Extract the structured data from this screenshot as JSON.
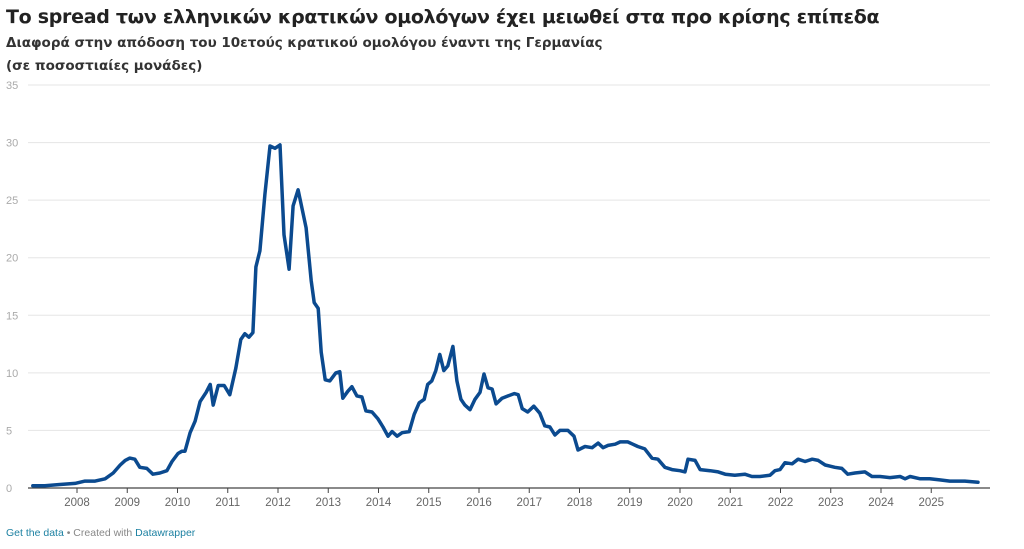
{
  "chart_data": {
    "type": "line",
    "title": "Το spread των ελληνικών κρατικών ομολόγων έχει μειωθεί στα προ κρίσης επίπεδα",
    "subtitle": "Διαφορά στην απόδοση του 10ετούς κρατικού ομολόγου έναντι της Γερμανίας",
    "subtitle2": "(σε ποσοστιαίες μονάδες)",
    "ylim": [
      0,
      35
    ],
    "yticks": [
      "0",
      "5",
      "10",
      "15",
      "20",
      "25",
      "30",
      "35"
    ],
    "xticks": [
      "2008",
      "2009",
      "2010",
      "2011",
      "2012",
      "2013",
      "2014",
      "2015",
      "2016",
      "2017",
      "2018",
      "2019",
      "2020",
      "2021",
      "2022",
      "2023",
      "2024",
      "2025"
    ],
    "grid": true,
    "line_color": "#0b4a8f",
    "x": [
      2007.12,
      2007.36,
      2007.66,
      2007.96,
      2008.16,
      2008.36,
      2008.56,
      2008.72,
      2008.86,
      2008.96,
      2009.05,
      2009.15,
      2009.25,
      2009.39,
      2009.51,
      2009.65,
      2009.79,
      2009.89,
      2010.01,
      2010.09,
      2010.15,
      2010.25,
      2010.35,
      2010.45,
      2010.57,
      2010.65,
      2010.71,
      2010.81,
      2010.93,
      2011.04,
      2011.16,
      2011.26,
      2011.34,
      2011.42,
      2011.5,
      2011.56,
      2011.64,
      2011.74,
      2011.84,
      2011.94,
      2012.04,
      2012.12,
      2012.22,
      2012.3,
      2012.4,
      2012.56,
      2012.66,
      2012.72,
      2012.8,
      2012.86,
      2012.94,
      2013.03,
      2013.15,
      2013.23,
      2013.29,
      2013.39,
      2013.47,
      2013.57,
      2013.67,
      2013.75,
      2013.87,
      2013.99,
      2014.09,
      2014.19,
      2014.27,
      2014.37,
      2014.47,
      2014.61,
      2014.71,
      2014.81,
      2014.91,
      2014.98,
      2015.06,
      2015.14,
      2015.22,
      2015.3,
      2015.38,
      2015.48,
      2015.56,
      2015.64,
      2015.72,
      2015.82,
      2015.92,
      2016.02,
      2016.1,
      2016.18,
      2016.26,
      2016.34,
      2016.46,
      2016.58,
      2016.7,
      2016.78,
      2016.86,
      2016.97,
      2017.09,
      2017.21,
      2017.31,
      2017.41,
      2017.51,
      2017.61,
      2017.77,
      2017.89,
      2017.97,
      2018.11,
      2018.25,
      2018.37,
      2018.47,
      2018.57,
      2018.71,
      2018.81,
      2018.96,
      2019.06,
      2019.16,
      2019.3,
      2019.44,
      2019.56,
      2019.7,
      2019.84,
      2020.0,
      2020.1,
      2020.16,
      2020.3,
      2020.4,
      2020.6,
      2020.76,
      2020.9,
      2021.09,
      2021.29,
      2021.43,
      2021.59,
      2021.79,
      2021.89,
      2021.99,
      2022.09,
      2022.23,
      2022.35,
      2022.49,
      2022.63,
      2022.75,
      2022.89,
      2022.98,
      2023.08,
      2023.22,
      2023.34,
      2023.48,
      2023.68,
      2023.82,
      2023.98,
      2024.18,
      2024.38,
      2024.48,
      2024.58,
      2024.78,
      2024.97,
      2025.17,
      2025.37,
      2025.67,
      2025.93
    ],
    "values": [
      0.2,
      0.2,
      0.3,
      0.4,
      0.6,
      0.6,
      0.8,
      1.3,
      2.0,
      2.4,
      2.6,
      2.5,
      1.8,
      1.7,
      1.2,
      1.3,
      1.5,
      2.3,
      3.0,
      3.2,
      3.2,
      4.8,
      5.8,
      7.5,
      8.3,
      9.0,
      7.2,
      8.9,
      8.9,
      8.1,
      10.4,
      12.9,
      13.4,
      13.1,
      13.5,
      19.2,
      20.6,
      25.5,
      29.7,
      29.5,
      29.8,
      22.0,
      19.0,
      24.5,
      25.9,
      22.6,
      18.0,
      16.1,
      15.6,
      11.8,
      9.4,
      9.3,
      10.0,
      10.1,
      7.8,
      8.4,
      8.8,
      8.0,
      7.9,
      6.7,
      6.6,
      6.0,
      5.3,
      4.5,
      4.9,
      4.5,
      4.8,
      4.9,
      6.4,
      7.4,
      7.7,
      9.0,
      9.3,
      10.2,
      11.6,
      10.2,
      10.6,
      12.3,
      9.3,
      7.7,
      7.2,
      6.8,
      7.7,
      8.3,
      9.9,
      8.7,
      8.6,
      7.3,
      7.8,
      8.0,
      8.2,
      8.1,
      6.9,
      6.6,
      7.1,
      6.5,
      5.4,
      5.3,
      4.6,
      5.0,
      5.0,
      4.5,
      3.3,
      3.6,
      3.5,
      3.9,
      3.5,
      3.7,
      3.8,
      4.0,
      4.0,
      3.8,
      3.6,
      3.4,
      2.6,
      2.5,
      1.8,
      1.6,
      1.5,
      1.4,
      2.5,
      2.4,
      1.6,
      1.5,
      1.4,
      1.2,
      1.1,
      1.2,
      1.0,
      1.0,
      1.1,
      1.5,
      1.6,
      2.2,
      2.1,
      2.5,
      2.3,
      2.5,
      2.4,
      2.0,
      1.9,
      1.8,
      1.7,
      1.2,
      1.3,
      1.4,
      1.0,
      1.0,
      0.9,
      1.0,
      0.8,
      1.0,
      0.8,
      0.8,
      0.7,
      0.6,
      0.6,
      0.5
    ]
  },
  "footer": {
    "get_data": "Get the data",
    "separator": " • Created with ",
    "datawrapper": "Datawrapper"
  }
}
